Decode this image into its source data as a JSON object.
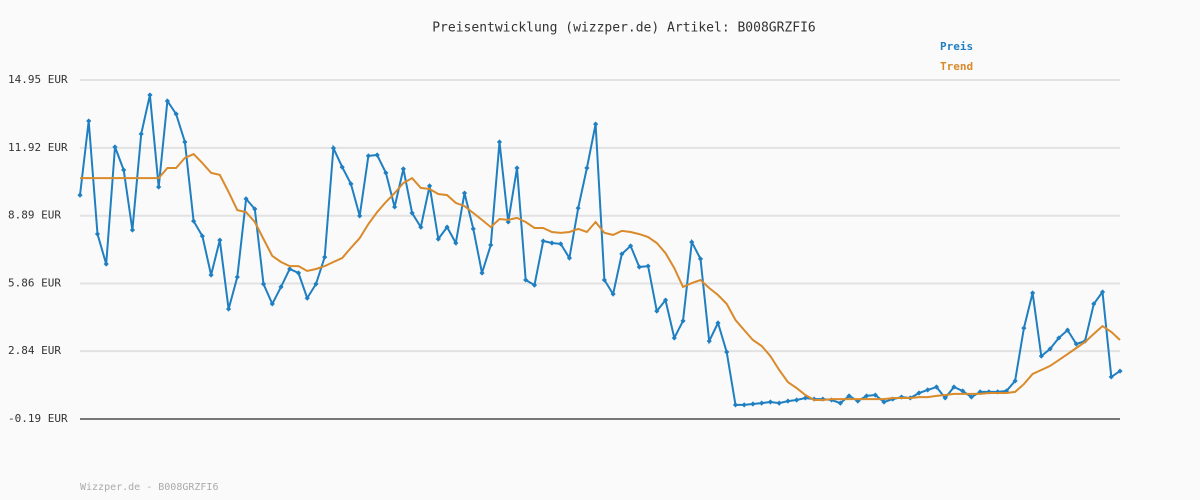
{
  "chart_data": {
    "type": "line",
    "title": "Preisentwicklung (wizzper.de) Artikel: B008GRZFI6",
    "footer": "Wizzper.de - B008GRZFI6",
    "ylim": [
      -0.19,
      14.95
    ],
    "yticks": [
      {
        "value": -0.19,
        "label": "-0.19 EUR"
      },
      {
        "value": 2.84,
        "label": "2.84 EUR"
      },
      {
        "value": 5.86,
        "label": "5.86 EUR"
      },
      {
        "value": 8.89,
        "label": "8.89 EUR"
      },
      {
        "value": 11.92,
        "label": "11.92 EUR"
      },
      {
        "value": 14.95,
        "label": "14.95 EUR"
      }
    ],
    "grid": true,
    "legend": "top-right",
    "series": [
      {
        "name": "Preis",
        "color": "#1f7fc1",
        "markers": true,
        "values": [
          9.81,
          13.12,
          8.07,
          6.73,
          11.96,
          10.93,
          8.25,
          12.54,
          14.28,
          10.17,
          14.01,
          13.43,
          12.18,
          8.65,
          7.98,
          6.24,
          7.8,
          4.72,
          6.15,
          9.64,
          9.19,
          5.84,
          4.95,
          5.71,
          6.51,
          6.33,
          5.21,
          5.84,
          7.04,
          11.91,
          11.06,
          10.31,
          8.88,
          11.56,
          11.6,
          10.8,
          9.28,
          10.98,
          9.01,
          8.38,
          10.22,
          7.85,
          8.38,
          7.67,
          9.9,
          8.3,
          6.33,
          7.58,
          12.18,
          8.61,
          11.02,
          6.02,
          5.79,
          7.76,
          7.67,
          7.63,
          7.0,
          9.23,
          11.02,
          12.98,
          6.02,
          5.39,
          7.18,
          7.54,
          6.6,
          6.64,
          4.63,
          5.12,
          3.43,
          4.19,
          7.71,
          6.96,
          3.29,
          4.1,
          2.8,
          0.44,
          0.44,
          0.48,
          0.52,
          0.57,
          0.52,
          0.61,
          0.66,
          0.75,
          0.7,
          0.7,
          0.66,
          0.52,
          0.84,
          0.61,
          0.84,
          0.88,
          0.57,
          0.7,
          0.79,
          0.75,
          0.97,
          1.11,
          1.24,
          0.75,
          1.24,
          1.06,
          0.79,
          1.02,
          1.02,
          1.02,
          1.06,
          1.51,
          3.87,
          5.44,
          2.62,
          2.94,
          3.43,
          3.78,
          3.16,
          3.29,
          4.95,
          5.48,
          1.69,
          1.95
        ]
      },
      {
        "name": "Trend",
        "color": "#d98a2b",
        "markers": false,
        "values": [
          10.57,
          10.57,
          10.57,
          10.57,
          10.57,
          10.57,
          10.57,
          10.57,
          10.57,
          10.57,
          11.02,
          11.02,
          11.47,
          11.64,
          11.24,
          10.8,
          10.71,
          9.95,
          9.14,
          9.05,
          8.61,
          7.85,
          7.09,
          6.82,
          6.64,
          6.64,
          6.42,
          6.51,
          6.64,
          6.82,
          7.0,
          7.45,
          7.89,
          8.52,
          9.05,
          9.5,
          9.9,
          10.35,
          10.57,
          10.13,
          10.08,
          9.86,
          9.81,
          9.46,
          9.32,
          9.01,
          8.7,
          8.38,
          8.74,
          8.7,
          8.79,
          8.61,
          8.34,
          8.34,
          8.16,
          8.12,
          8.16,
          8.3,
          8.16,
          8.61,
          8.12,
          8.03,
          8.21,
          8.16,
          8.07,
          7.94,
          7.67,
          7.22,
          6.55,
          5.71,
          5.88,
          6.02,
          5.66,
          5.35,
          4.95,
          4.23,
          3.78,
          3.34,
          3.07,
          2.62,
          2.0,
          1.46,
          1.19,
          0.88,
          0.66,
          0.66,
          0.7,
          0.7,
          0.7,
          0.7,
          0.7,
          0.7,
          0.7,
          0.75,
          0.75,
          0.75,
          0.79,
          0.79,
          0.84,
          0.88,
          0.93,
          0.93,
          0.93,
          0.93,
          0.97,
          0.97,
          0.97,
          1.02,
          1.37,
          1.82,
          2.0,
          2.18,
          2.44,
          2.71,
          2.98,
          3.25,
          3.61,
          3.96,
          3.7,
          3.34
        ]
      }
    ]
  }
}
